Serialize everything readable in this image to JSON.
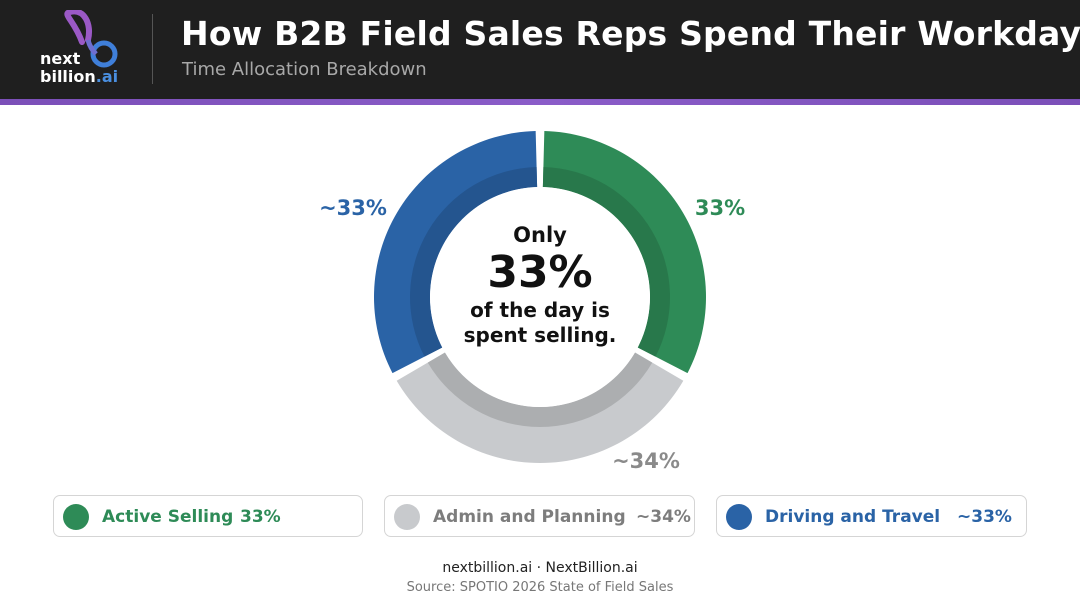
{
  "header": {
    "logo_text_line1": "next",
    "logo_text_line2_a": "billion",
    "logo_text_line2_b": ".ai",
    "title": "How B2B Field Sales Reps Spend Their Workday",
    "subtitle": "Time Allocation Breakdown"
  },
  "chart_data": {
    "type": "pie",
    "series": [
      {
        "name": "Active Selling",
        "value": 33,
        "label": "33%",
        "color": "#2e8b57"
      },
      {
        "name": "Admin and Planning",
        "value": 34,
        "label": "~34%",
        "color": "#c8cacd"
      },
      {
        "name": "Driving and Travel",
        "value": 33,
        "label": "~33%",
        "color": "#2a63a6"
      }
    ],
    "center_text": {
      "pre": "Only",
      "big": "33%",
      "post_line1": "of the day is",
      "post_line2": "spent selling."
    },
    "legend_placement": "bottom"
  },
  "legend": [
    {
      "label": "Active Selling",
      "value": "33%",
      "color": "#2e8b57",
      "text_color": "#2e8b57"
    },
    {
      "label": "Admin and Planning",
      "value": "~34%",
      "color": "#c8cacd",
      "text_color": "#7d7d7d"
    },
    {
      "label": "Driving and Travel",
      "value": "~33%",
      "color": "#2a63a6",
      "text_color": "#2a63a6"
    }
  ],
  "footer": {
    "line1": "nextbillion.ai · NextBillion.ai",
    "line2": "Source: SPOTIO 2026 State of Field Sales"
  }
}
